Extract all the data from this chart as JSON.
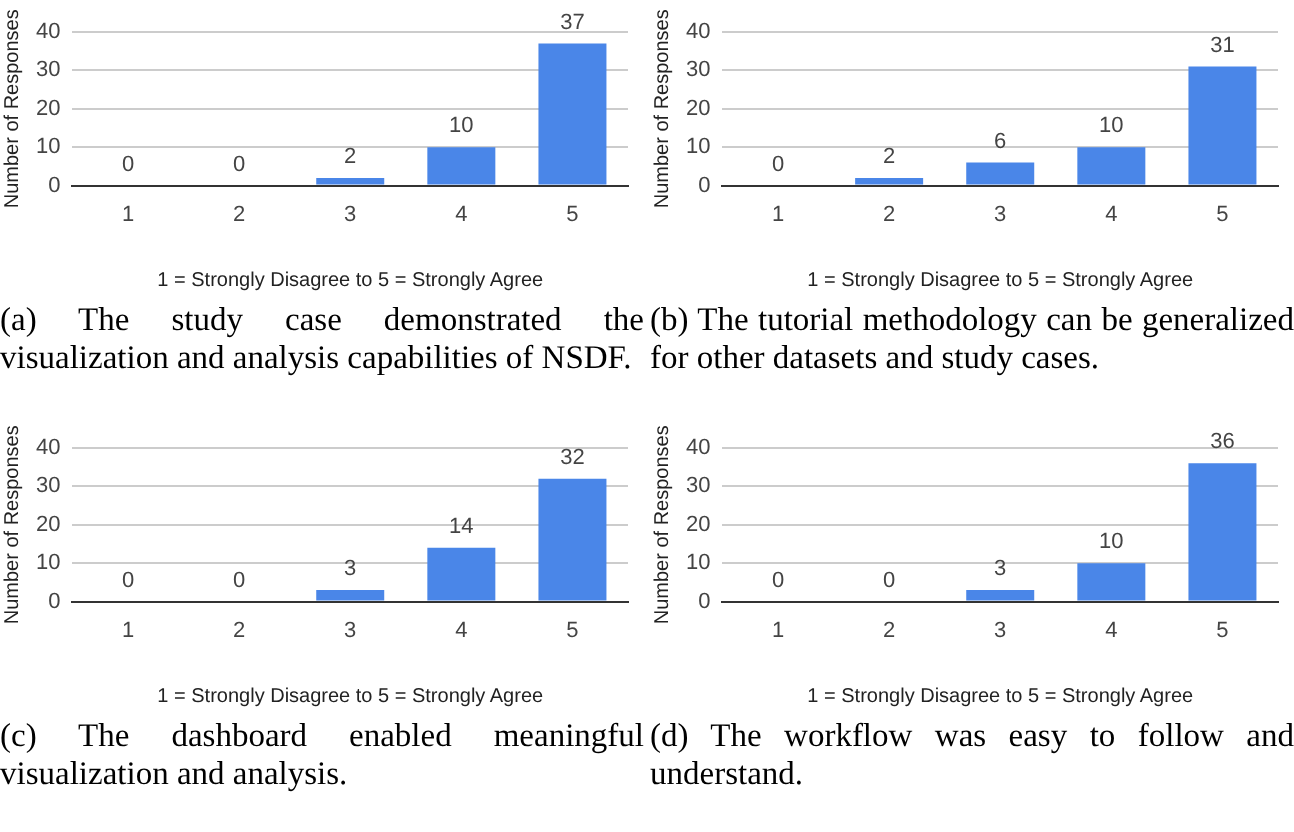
{
  "chart_data": [
    {
      "type": "bar",
      "categories": [
        "1",
        "2",
        "3",
        "4",
        "5"
      ],
      "values": [
        0,
        0,
        2,
        10,
        37
      ],
      "color": "#4a86e8",
      "ylim": [
        0,
        40
      ],
      "yticks": [
        0,
        10,
        20,
        30,
        40
      ],
      "grid": "y",
      "data_labels": true,
      "xlabel": "1 = Strongly Disagree to 5 = Strongly Agree",
      "ylabel": "Number of Responses",
      "annotations": [
        "(a) The study case demonstrated the visualization and analysis capabilities of NSDF."
      ]
    },
    {
      "type": "bar",
      "categories": [
        "1",
        "2",
        "3",
        "4",
        "5"
      ],
      "values": [
        0,
        2,
        6,
        10,
        31
      ],
      "color": "#4a86e8",
      "ylim": [
        0,
        40
      ],
      "yticks": [
        0,
        10,
        20,
        30,
        40
      ],
      "grid": "y",
      "data_labels": true,
      "xlabel": "1 = Strongly Disagree to 5 = Strongly Agree",
      "ylabel": "Number of Responses",
      "annotations": [
        "(b) The tutorial methodology can be generalized for other datasets and study cases."
      ]
    },
    {
      "type": "bar",
      "categories": [
        "1",
        "2",
        "3",
        "4",
        "5"
      ],
      "values": [
        0,
        0,
        3,
        14,
        32
      ],
      "color": "#4a86e8",
      "ylim": [
        0,
        40
      ],
      "yticks": [
        0,
        10,
        20,
        30,
        40
      ],
      "grid": "y",
      "data_labels": true,
      "xlabel": "1 = Strongly Disagree to 5 = Strongly Agree",
      "ylabel": "Number of Responses",
      "annotations": [
        "(c) The dashboard enabled meaningful visualization and analysis."
      ]
    },
    {
      "type": "bar",
      "categories": [
        "1",
        "2",
        "3",
        "4",
        "5"
      ],
      "values": [
        0,
        0,
        3,
        10,
        36
      ],
      "color": "#4a86e8",
      "ylim": [
        0,
        40
      ],
      "yticks": [
        0,
        10,
        20,
        30,
        40
      ],
      "grid": "y",
      "data_labels": true,
      "xlabel": "1 = Strongly Disagree to 5 = Strongly Agree",
      "ylabel": "Number of Responses",
      "annotations": [
        "(d) The workflow was easy to follow and understand."
      ]
    }
  ]
}
